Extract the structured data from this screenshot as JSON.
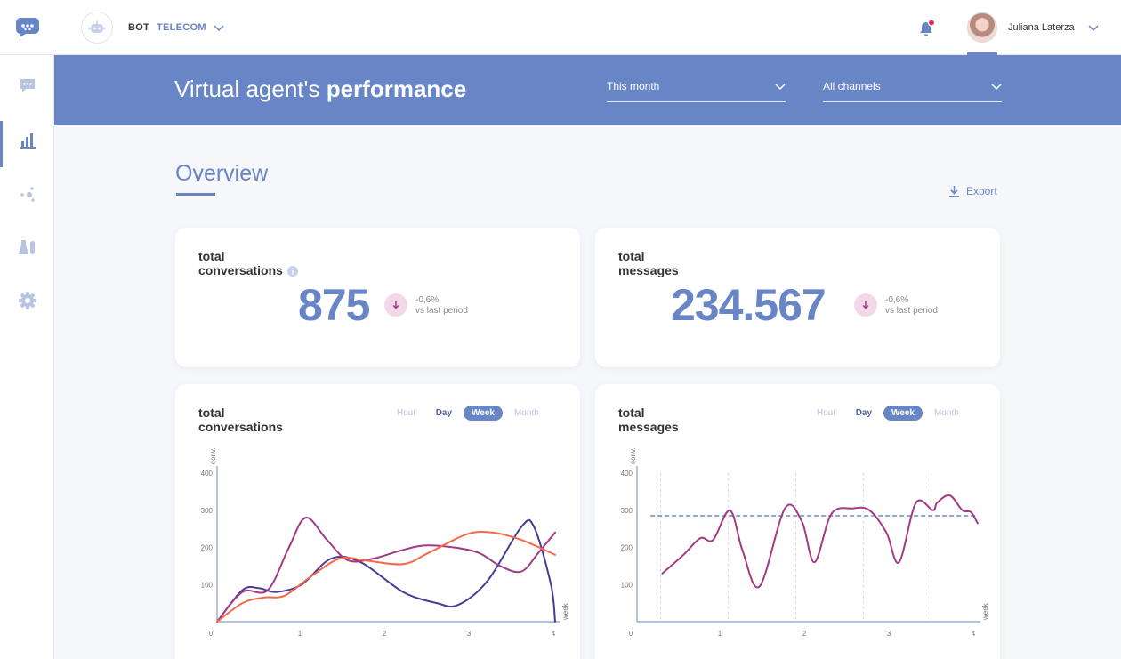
{
  "header": {
    "bot_label": "BOT",
    "bot_company": "TELECOM",
    "user_name": "Juliana Laterza",
    "icons": [
      "chat-bubble-logo-icon",
      "robot-icon",
      "chevron-down-icon",
      "bell-icon"
    ]
  },
  "sidebar": {
    "items": [
      {
        "icon": "chat-icon",
        "active": false
      },
      {
        "icon": "bar-chart-icon",
        "active": true
      },
      {
        "icon": "network-icon",
        "active": false
      },
      {
        "icon": "flask-icon",
        "active": false
      },
      {
        "icon": "gear-icon",
        "active": false
      }
    ]
  },
  "banner": {
    "title_light": "Virtual agent's ",
    "title_bold": "performance",
    "period_value": "This month",
    "channel_value": "All channels"
  },
  "overview": {
    "title": "Overview",
    "export_label": "Export"
  },
  "stats": {
    "conversations": {
      "title_line1": "total",
      "title_line2": "conversations",
      "value": "875",
      "delta": "-0,6%",
      "delta_label": "vs last period"
    },
    "messages": {
      "title_line1": "total",
      "title_line2": "messages",
      "value": "234.567",
      "delta": "-0,6%",
      "delta_label": "vs last period"
    }
  },
  "tabs": {
    "hour": "Hour",
    "day": "Day",
    "week": "Week",
    "month": "Month",
    "active": "Week"
  },
  "colors": {
    "accent": "#6886c5",
    "series_indigo": "#4b3a95",
    "series_magenta": "#a23a85",
    "series_orange": "#f06a4b",
    "trend_bg": "#f2d9ea"
  },
  "chart_data": [
    {
      "type": "line",
      "title_line1": "total",
      "title_line2": "conversations",
      "xlabel": "week",
      "ylabel": "conv.",
      "x_ticks": [
        "0",
        "1",
        "2",
        "3",
        "4"
      ],
      "y_ticks": [
        "100",
        "200",
        "300",
        "400"
      ],
      "xlim": [
        0,
        4
      ],
      "ylim": [
        0,
        400
      ],
      "series": [
        {
          "color": "#4b3a95",
          "points": [
            [
              0,
              0
            ],
            [
              0.3,
              85
            ],
            [
              0.5,
              90
            ],
            [
              0.7,
              80
            ],
            [
              1,
              100
            ],
            [
              1.35,
              170
            ],
            [
              1.7,
              160
            ],
            [
              2.2,
              80
            ],
            [
              2.6,
              50
            ],
            [
              2.85,
              45
            ],
            [
              3.2,
              110
            ],
            [
              3.6,
              255
            ],
            [
              3.75,
              255
            ],
            [
              3.95,
              100
            ],
            [
              4,
              0
            ]
          ]
        },
        {
          "color": "#a23a85",
          "points": [
            [
              0,
              0
            ],
            [
              0.3,
              80
            ],
            [
              0.6,
              85
            ],
            [
              0.85,
              200
            ],
            [
              1.05,
              280
            ],
            [
              1.3,
              220
            ],
            [
              1.55,
              165
            ],
            [
              1.85,
              170
            ],
            [
              2.15,
              190
            ],
            [
              2.45,
              205
            ],
            [
              2.8,
              200
            ],
            [
              3.1,
              185
            ],
            [
              3.35,
              150
            ],
            [
              3.6,
              135
            ],
            [
              3.8,
              185
            ],
            [
              4,
              240
            ]
          ]
        },
        {
          "color": "#f06a4b",
          "points": [
            [
              0,
              0
            ],
            [
              0.3,
              50
            ],
            [
              0.55,
              65
            ],
            [
              0.8,
              70
            ],
            [
              1.1,
              120
            ],
            [
              1.45,
              170
            ],
            [
              1.75,
              165
            ],
            [
              2.2,
              155
            ],
            [
              2.5,
              185
            ],
            [
              2.95,
              235
            ],
            [
              3.25,
              240
            ],
            [
              3.6,
              220
            ],
            [
              4,
              180
            ]
          ]
        }
      ]
    },
    {
      "type": "line",
      "title_line1": "total",
      "title_line2": "messages",
      "xlabel": "week",
      "ylabel": "conv.",
      "x_ticks": [
        "0",
        "1",
        "2",
        "3",
        "4"
      ],
      "y_ticks": [
        "100",
        "200",
        "300",
        "400"
      ],
      "xlim": [
        0,
        4
      ],
      "ylim": [
        0,
        400
      ],
      "average": 285,
      "vertical_gridlines": true,
      "series": [
        {
          "color": "#a23a85",
          "points": [
            [
              0.3,
              130
            ],
            [
              0.55,
              180
            ],
            [
              0.75,
              225
            ],
            [
              0.9,
              220
            ],
            [
              1.1,
              300
            ],
            [
              1.25,
              190
            ],
            [
              1.45,
              95
            ],
            [
              1.75,
              305
            ],
            [
              1.95,
              270
            ],
            [
              2.1,
              160
            ],
            [
              2.3,
              290
            ],
            [
              2.55,
              305
            ],
            [
              2.75,
              300
            ],
            [
              2.95,
              240
            ],
            [
              3.1,
              160
            ],
            [
              3.3,
              320
            ],
            [
              3.5,
              300
            ],
            [
              3.55,
              320
            ],
            [
              3.7,
              340
            ],
            [
              3.85,
              300
            ],
            [
              3.95,
              295
            ],
            [
              4.03,
              265
            ]
          ]
        }
      ]
    }
  ]
}
